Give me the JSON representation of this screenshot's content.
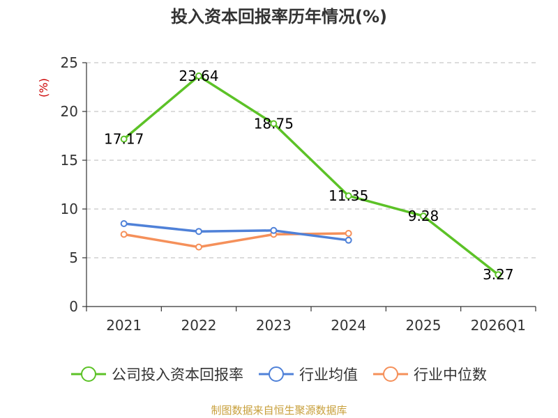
{
  "chart_data": {
    "type": "line",
    "title": "投入资本回报率历年情况(%)",
    "ylabel": "(%)",
    "xlabel": "",
    "categories": [
      "2021",
      "2022",
      "2023",
      "2024",
      "2025",
      "2026Q1"
    ],
    "ylim": [
      0,
      25
    ],
    "yticks": [
      0,
      5,
      10,
      15,
      20,
      25
    ],
    "grid": true,
    "legend_position": "bottom",
    "series": [
      {
        "name": "公司投入资本回报率",
        "color": "#5cc227",
        "values": [
          17.17,
          23.64,
          18.75,
          11.35,
          9.28,
          3.27
        ],
        "labels": [
          "17.17",
          "23.64",
          "18.75",
          "11.35",
          "9.28",
          "3.27"
        ]
      },
      {
        "name": "行业均值",
        "color": "#4f81d8",
        "values": [
          8.5,
          7.7,
          7.8,
          6.8,
          null,
          null
        ]
      },
      {
        "name": "行业中位数",
        "color": "#f5905a",
        "values": [
          7.4,
          6.1,
          7.4,
          7.5,
          null,
          null
        ]
      }
    ],
    "source": "制图数据来自恒生聚源数据库"
  }
}
